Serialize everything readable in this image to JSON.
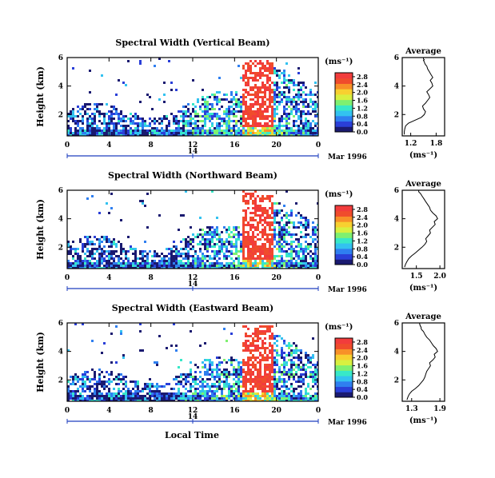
{
  "figure": {
    "xlabel_bottom": "Local Time",
    "date_label": "Mar 1996",
    "date_axis_tick": "14",
    "colorbar_unit": "(ms⁻¹)",
    "avg_title": "Average",
    "avg_xlabel": "(ms⁻¹)",
    "colormap": [
      "#1a1a70",
      "#2a3fd8",
      "#2f7ff0",
      "#33c2f0",
      "#38e8c8",
      "#7ff070",
      "#d8f040",
      "#f8d030",
      "#f89028",
      "#f04c2c",
      "#f23c3c"
    ]
  },
  "chart_data": [
    {
      "type": "heatmap",
      "title": "Spectral Width (Vertical Beam)",
      "ylabel": "Height (km)",
      "x_ticks": [
        "0",
        "4",
        "8",
        "12",
        "16",
        "20",
        "0"
      ],
      "y_ticks": [
        "2",
        "4",
        "6"
      ],
      "xlim": [
        0,
        24
      ],
      "ylim": [
        0.5,
        6
      ],
      "colorbar_ticks": [
        "0.0",
        "0.4",
        "0.8",
        "1.2",
        "1.6",
        "2.0",
        "2.4",
        "2.8"
      ],
      "colorbar_range": [
        0,
        3.0
      ],
      "average": {
        "title": "Average",
        "x_ticks": [
          "1.2",
          "1.8"
        ],
        "xlim": [
          1.0,
          2.0
        ],
        "y_ticks": [
          "2",
          "4",
          "6"
        ],
        "ylim": [
          0.5,
          6
        ],
        "x": [
          1.05,
          1.05,
          1.06,
          1.08,
          1.15,
          1.3,
          1.45,
          1.52,
          1.55,
          1.5,
          1.48,
          1.55,
          1.6,
          1.65,
          1.62,
          1.58,
          1.65,
          1.72,
          1.7,
          1.66,
          1.72,
          1.68,
          1.64,
          1.6,
          1.58,
          1.55,
          1.53,
          1.52,
          1.5,
          1.52,
          1.5,
          1.5
        ],
        "y": [
          0.6,
          0.8,
          1.0,
          1.2,
          1.4,
          1.6,
          1.8,
          2.0,
          2.2,
          2.4,
          2.6,
          2.8,
          3.0,
          3.2,
          3.4,
          3.6,
          3.8,
          4.0,
          4.2,
          4.4,
          4.6,
          4.8,
          5.0,
          5.2,
          5.4,
          5.5,
          5.6,
          5.7,
          5.8,
          5.85,
          5.9,
          6.0
        ]
      }
    },
    {
      "type": "heatmap",
      "title": "Spectral Width (Northward Beam)",
      "ylabel": "Height (km)",
      "x_ticks": [
        "0",
        "4",
        "8",
        "12",
        "16",
        "20",
        "0"
      ],
      "y_ticks": [
        "2",
        "4",
        "6"
      ],
      "xlim": [
        0,
        24
      ],
      "ylim": [
        0.5,
        6
      ],
      "colorbar_ticks": [
        "0.0",
        "0.4",
        "0.8",
        "1.2",
        "1.6",
        "2.0",
        "2.4",
        "2.8"
      ],
      "colorbar_range": [
        0,
        3.0
      ],
      "average": {
        "title": "Average",
        "x_ticks": [
          "1.5",
          "2.0"
        ],
        "xlim": [
          1.2,
          2.1
        ],
        "y_ticks": [
          "2",
          "4",
          "6"
        ],
        "ylim": [
          0.5,
          6
        ],
        "x": [
          1.25,
          1.27,
          1.3,
          1.34,
          1.4,
          1.48,
          1.55,
          1.62,
          1.68,
          1.72,
          1.7,
          1.75,
          1.8,
          1.78,
          1.84,
          1.9,
          1.88,
          1.95,
          1.92,
          1.85,
          1.8,
          1.78,
          1.74,
          1.7,
          1.66,
          1.64,
          1.62,
          1.6,
          1.58,
          1.56,
          1.55,
          1.55
        ],
        "y": [
          0.6,
          0.8,
          1.0,
          1.2,
          1.4,
          1.6,
          1.8,
          2.0,
          2.2,
          2.4,
          2.6,
          2.8,
          3.0,
          3.2,
          3.4,
          3.6,
          3.8,
          4.0,
          4.2,
          4.4,
          4.6,
          4.8,
          5.0,
          5.2,
          5.4,
          5.5,
          5.6,
          5.7,
          5.8,
          5.85,
          5.9,
          6.0
        ]
      }
    },
    {
      "type": "heatmap",
      "title": "Spectral Width (Eastward Beam)",
      "ylabel": "Height (km)",
      "x_ticks": [
        "0",
        "4",
        "8",
        "12",
        "16",
        "20",
        "0"
      ],
      "y_ticks": [
        "2",
        "4",
        "6"
      ],
      "xlim": [
        0,
        24
      ],
      "ylim": [
        0.5,
        6
      ],
      "colorbar_ticks": [
        "0.0",
        "0.4",
        "0.8",
        "1.2",
        "1.6",
        "2.0",
        "2.4",
        "2.8"
      ],
      "colorbar_range": [
        0,
        3.0
      ],
      "average": {
        "title": "Average",
        "x_ticks": [
          "1.3",
          "1.9"
        ],
        "xlim": [
          1.1,
          2.0
        ],
        "y_ticks": [
          "2",
          "4",
          "6"
        ],
        "ylim": [
          0.5,
          6
        ],
        "x": [
          1.2,
          1.22,
          1.25,
          1.3,
          1.38,
          1.45,
          1.5,
          1.55,
          1.58,
          1.6,
          1.62,
          1.66,
          1.7,
          1.68,
          1.75,
          1.8,
          1.78,
          1.85,
          1.82,
          1.76,
          1.72,
          1.68,
          1.62,
          1.58,
          1.55,
          1.52,
          1.5,
          1.5,
          1.48,
          1.48,
          1.47,
          1.47
        ],
        "y": [
          0.6,
          0.8,
          1.0,
          1.2,
          1.4,
          1.6,
          1.8,
          2.0,
          2.2,
          2.4,
          2.6,
          2.8,
          3.0,
          3.2,
          3.4,
          3.6,
          3.8,
          4.0,
          4.2,
          4.4,
          4.6,
          4.8,
          5.0,
          5.2,
          5.4,
          5.5,
          5.6,
          5.7,
          5.8,
          5.85,
          5.9,
          6.0
        ]
      }
    }
  ]
}
